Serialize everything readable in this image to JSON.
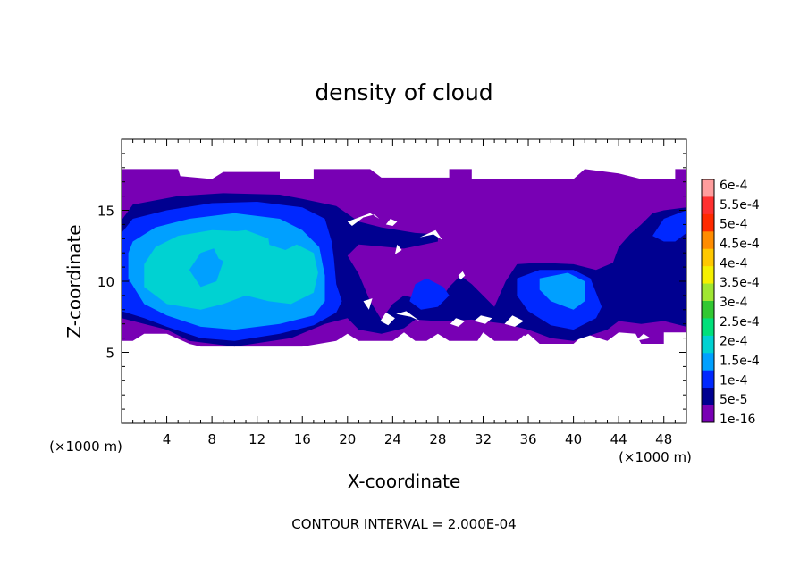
{
  "chart_data": {
    "type": "heatmap",
    "title": "density of cloud",
    "xlabel": "X-coordinate",
    "ylabel": "Z-coordinate",
    "x_unit_left": "(×1000 m)",
    "x_unit_right": "(×1000 m)",
    "footer": "CONTOUR INTERVAL = 2.000E-04",
    "xlim": [
      0,
      50
    ],
    "ylim": [
      0,
      20
    ],
    "x_ticks": [
      4,
      8,
      12,
      16,
      20,
      24,
      28,
      32,
      36,
      40,
      44,
      48
    ],
    "y_ticks": [
      5,
      10,
      15
    ],
    "colorbar": {
      "labels": [
        "6e-4",
        "5.5e-4",
        "5e-4",
        "4.5e-4",
        "4e-4",
        "3.5e-4",
        "3e-4",
        "2.5e-4",
        "2e-4",
        "1.5e-4",
        "1e-4",
        "5e-5",
        "1e-16"
      ],
      "colors": [
        "#ff9d9d",
        "#ff3030",
        "#ff2a00",
        "#ff8c00",
        "#ffc800",
        "#f5f000",
        "#a0e632",
        "#32c832",
        "#00e07a",
        "#00d2d2",
        "#00a0ff",
        "#0028ff",
        "#000090",
        "#7800b4"
      ]
    },
    "regions": [
      {
        "level": "1e-16",
        "polygon": [
          [
            0,
            17.9
          ],
          [
            5,
            17.9
          ],
          [
            5.2,
            17.4
          ],
          [
            8,
            17.2
          ],
          [
            9,
            17.7
          ],
          [
            14,
            17.7
          ],
          [
            14,
            17.2
          ],
          [
            17,
            17.2
          ],
          [
            17,
            17.9
          ],
          [
            22,
            17.9
          ],
          [
            23,
            17.3
          ],
          [
            29,
            17.3
          ],
          [
            29,
            17.9
          ],
          [
            31,
            17.9
          ],
          [
            31,
            17.2
          ],
          [
            40,
            17.2
          ],
          [
            41,
            17.9
          ],
          [
            44,
            17.6
          ],
          [
            46,
            17.2
          ],
          [
            49,
            17.2
          ],
          [
            49,
            17.9
          ],
          [
            50,
            17.9
          ],
          [
            50,
            6.4
          ],
          [
            48,
            6.4
          ],
          [
            48,
            5.6
          ],
          [
            46,
            5.6
          ],
          [
            45.5,
            6.3
          ],
          [
            44,
            6.4
          ],
          [
            43,
            5.8
          ],
          [
            41,
            6.3
          ],
          [
            40,
            5.6
          ],
          [
            37,
            5.6
          ],
          [
            36,
            6.3
          ],
          [
            35,
            5.8
          ],
          [
            33,
            5.8
          ],
          [
            32,
            6.4
          ],
          [
            31.5,
            5.8
          ],
          [
            29,
            5.8
          ],
          [
            28,
            6.3
          ],
          [
            27,
            5.8
          ],
          [
            26,
            5.8
          ],
          [
            25,
            6.4
          ],
          [
            24,
            5.8
          ],
          [
            21,
            5.8
          ],
          [
            20,
            6.3
          ],
          [
            19,
            5.8
          ],
          [
            16,
            5.4
          ],
          [
            14,
            5.4
          ],
          [
            10,
            5.4
          ],
          [
            7,
            5.4
          ],
          [
            6,
            5.6
          ],
          [
            4,
            6.3
          ],
          [
            2,
            6.3
          ],
          [
            1,
            5.8
          ],
          [
            0,
            5.8
          ]
        ]
      },
      {
        "level": "5e-5",
        "polygon": [
          [
            0,
            14.3
          ],
          [
            1,
            15.4
          ],
          [
            5,
            16.0
          ],
          [
            9,
            16.2
          ],
          [
            14,
            16.1
          ],
          [
            16,
            15.8
          ],
          [
            19,
            15.3
          ],
          [
            21,
            14.2
          ],
          [
            23,
            13.8
          ],
          [
            26,
            13.4
          ],
          [
            28,
            13.3
          ],
          [
            28,
            12.8
          ],
          [
            25,
            12.3
          ],
          [
            21,
            12.6
          ],
          [
            20,
            11.8
          ],
          [
            21,
            10.5
          ],
          [
            22,
            8.6
          ],
          [
            23,
            7.3
          ],
          [
            24,
            8.4
          ],
          [
            25,
            9.0
          ],
          [
            26,
            8.8
          ],
          [
            27,
            8.6
          ],
          [
            28.5,
            9.0
          ],
          [
            29,
            9.6
          ],
          [
            30,
            10.4
          ],
          [
            31,
            9.8
          ],
          [
            33,
            8.2
          ],
          [
            34,
            10.0
          ],
          [
            35,
            11.2
          ],
          [
            37,
            11.3
          ],
          [
            40,
            11.2
          ],
          [
            42,
            10.8
          ],
          [
            43.5,
            11.3
          ],
          [
            44,
            12.4
          ],
          [
            45,
            13.3
          ],
          [
            46,
            14.0
          ],
          [
            47,
            14.8
          ],
          [
            48,
            15.0
          ],
          [
            50,
            15.2
          ],
          [
            50,
            6.8
          ],
          [
            48,
            7.2
          ],
          [
            46,
            7.0
          ],
          [
            44,
            7.2
          ],
          [
            43,
            6.6
          ],
          [
            40,
            5.8
          ],
          [
            38,
            6.0
          ],
          [
            36,
            6.6
          ],
          [
            34,
            7.0
          ],
          [
            31,
            7.3
          ],
          [
            28,
            7.2
          ],
          [
            26,
            7.3
          ],
          [
            25,
            6.7
          ],
          [
            23,
            6.3
          ],
          [
            21,
            6.6
          ],
          [
            20,
            7.4
          ],
          [
            18,
            7.0
          ],
          [
            15,
            6.0
          ],
          [
            10,
            5.4
          ],
          [
            6,
            5.8
          ],
          [
            4,
            6.6
          ],
          [
            2,
            7.0
          ],
          [
            0,
            7.4
          ]
        ]
      },
      {
        "level": "1e-4",
        "polygon": [
          [
            0,
            13.4
          ],
          [
            1,
            14.4
          ],
          [
            4,
            15.0
          ],
          [
            8,
            15.5
          ],
          [
            12,
            15.6
          ],
          [
            16,
            15.2
          ],
          [
            18,
            14.4
          ],
          [
            18.6,
            12.8
          ],
          [
            18.8,
            11.6
          ],
          [
            19,
            9.8
          ],
          [
            19.5,
            8.6
          ],
          [
            19,
            7.8
          ],
          [
            17,
            6.9
          ],
          [
            14,
            6.3
          ],
          [
            10,
            5.8
          ],
          [
            7,
            6.0
          ],
          [
            4,
            6.8
          ],
          [
            2,
            7.4
          ],
          [
            0,
            7.9
          ]
        ]
      },
      {
        "level": "1e-4",
        "polygon": [
          [
            26,
            9.8
          ],
          [
            27,
            10.2
          ],
          [
            28.5,
            9.6
          ],
          [
            29,
            9.0
          ],
          [
            28,
            8.2
          ],
          [
            26.5,
            8.0
          ],
          [
            25.5,
            8.6
          ]
        ]
      },
      {
        "level": "1e-4",
        "polygon": [
          [
            35,
            10.2
          ],
          [
            37,
            10.8
          ],
          [
            40,
            10.8
          ],
          [
            41.5,
            10.2
          ],
          [
            42,
            9.2
          ],
          [
            42.5,
            8.2
          ],
          [
            42,
            7.4
          ],
          [
            40,
            6.6
          ],
          [
            38,
            6.9
          ],
          [
            36,
            7.9
          ],
          [
            35,
            9.0
          ]
        ]
      },
      {
        "level": "1e-4",
        "polygon": [
          [
            47,
            13.2
          ],
          [
            48,
            14.4
          ],
          [
            50,
            15.0
          ],
          [
            50,
            13.4
          ],
          [
            49,
            12.8
          ],
          [
            48,
            12.8
          ]
        ]
      },
      {
        "level": "1.5e-4",
        "polygon": [
          [
            1,
            12.8
          ],
          [
            3,
            13.8
          ],
          [
            6,
            14.4
          ],
          [
            10,
            14.8
          ],
          [
            14,
            14.4
          ],
          [
            16,
            13.6
          ],
          [
            17.5,
            12.4
          ],
          [
            18,
            10.4
          ],
          [
            18,
            8.6
          ],
          [
            17,
            7.6
          ],
          [
            14,
            7.0
          ],
          [
            10,
            6.6
          ],
          [
            7,
            6.8
          ],
          [
            4,
            7.6
          ],
          [
            2,
            8.4
          ],
          [
            0.6,
            10.2
          ],
          [
            0.6,
            12.0
          ]
        ]
      },
      {
        "level": "1.5e-4",
        "polygon": [
          [
            37,
            10.2
          ],
          [
            39.5,
            10.6
          ],
          [
            41,
            10.0
          ],
          [
            41,
            8.6
          ],
          [
            40,
            8.0
          ],
          [
            38,
            8.6
          ],
          [
            37,
            9.4
          ]
        ]
      },
      {
        "level": "2e-4",
        "polygon": [
          [
            2,
            11.2
          ],
          [
            3,
            12.4
          ],
          [
            5,
            13.2
          ],
          [
            8,
            13.6
          ],
          [
            11,
            13.5
          ],
          [
            13,
            12.6
          ],
          [
            14.5,
            12.2
          ],
          [
            15.5,
            12.6
          ],
          [
            17,
            12.0
          ],
          [
            17.4,
            10.6
          ],
          [
            17,
            9.2
          ],
          [
            15,
            8.4
          ],
          [
            13,
            8.6
          ],
          [
            11,
            9.0
          ],
          [
            9,
            8.4
          ],
          [
            7,
            8.0
          ],
          [
            4,
            8.4
          ],
          [
            2,
            9.6
          ]
        ]
      },
      {
        "level": "1.5e-4",
        "polygon": [
          [
            6,
            10.8
          ],
          [
            7,
            12.0
          ],
          [
            8.5,
            12.4
          ],
          [
            9,
            11.4
          ],
          [
            8.4,
            10.0
          ],
          [
            7,
            9.6
          ]
        ]
      },
      {
        "level": "2e-4",
        "polygon": [
          [
            8,
            12.6
          ],
          [
            9,
            13.4
          ],
          [
            11,
            13.6
          ],
          [
            13,
            13.0
          ],
          [
            13.2,
            12.0
          ],
          [
            12,
            11.2
          ],
          [
            10,
            11.0
          ],
          [
            8.6,
            11.6
          ]
        ]
      }
    ],
    "cutouts": [
      {
        "polygon": [
          [
            20,
            14.2
          ],
          [
            20.4,
            13.9
          ],
          [
            21.4,
            14.5
          ],
          [
            22.4,
            14.7
          ],
          [
            22.8,
            14.4
          ],
          [
            22.0,
            14.8
          ]
        ]
      },
      {
        "polygon": [
          [
            23.4,
            14.0
          ],
          [
            24.0,
            13.9
          ],
          [
            24.4,
            14.2
          ],
          [
            23.8,
            14.4
          ]
        ]
      },
      {
        "polygon": [
          [
            26.4,
            13.1
          ],
          [
            27.6,
            13.3
          ],
          [
            28.4,
            12.9
          ],
          [
            27.8,
            13.6
          ]
        ]
      },
      {
        "polygon": [
          [
            21.4,
            8.6
          ],
          [
            21.9,
            8.0
          ],
          [
            22.2,
            8.8
          ]
        ]
      },
      {
        "polygon": [
          [
            22.9,
            7.2
          ],
          [
            23.6,
            6.9
          ],
          [
            24.2,
            7.4
          ],
          [
            23.4,
            7.8
          ]
        ]
      },
      {
        "polygon": [
          [
            24.3,
            7.7
          ],
          [
            25.6,
            7.5
          ],
          [
            26.4,
            7.2
          ],
          [
            25.2,
            7.9
          ]
        ]
      },
      {
        "polygon": [
          [
            29.1,
            7.0
          ],
          [
            29.8,
            6.8
          ],
          [
            30.4,
            7.2
          ],
          [
            29.6,
            7.4
          ]
        ]
      },
      {
        "polygon": [
          [
            31.2,
            7.2
          ],
          [
            32.2,
            7.0
          ],
          [
            32.8,
            7.4
          ],
          [
            31.8,
            7.6
          ]
        ]
      },
      {
        "polygon": [
          [
            33.9,
            7.0
          ],
          [
            34.8,
            6.8
          ],
          [
            35.6,
            7.2
          ],
          [
            34.6,
            7.6
          ]
        ]
      },
      {
        "polygon": [
          [
            30.0,
            10.1
          ],
          [
            30.4,
            10.4
          ],
          [
            30.2,
            10.7
          ],
          [
            29.8,
            10.4
          ]
        ]
      },
      {
        "polygon": [
          [
            24.2,
            11.9
          ],
          [
            24.8,
            12.2
          ],
          [
            24.4,
            12.6
          ]
        ]
      },
      {
        "polygon": [
          [
            35.2,
            5.9
          ],
          [
            36.3,
            5.8
          ],
          [
            35.6,
            6.2
          ]
        ]
      },
      {
        "polygon": [
          [
            45.5,
            5.8
          ],
          [
            46.8,
            6.0
          ],
          [
            46.2,
            6.3
          ]
        ]
      }
    ]
  }
}
